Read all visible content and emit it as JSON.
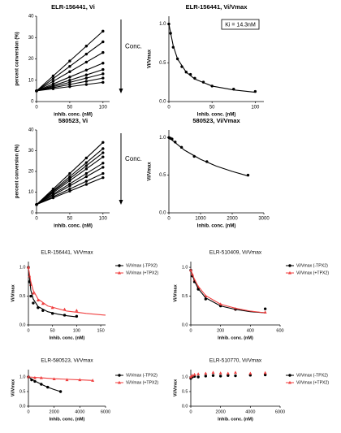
{
  "chart_data": [
    {
      "type": "line",
      "title": "ELR-156441, Vi",
      "xlabel": "inhib. conc. (nM)",
      "ylabel": "percent conversion (%)",
      "arrow_annotation": "Conc.",
      "x": [
        0,
        25,
        50,
        75,
        100
      ],
      "series": [
        {
          "color": "#000",
          "style": "both",
          "marker": "circle",
          "values": [
            5,
            12,
            19,
            26,
            33
          ]
        },
        {
          "color": "#000",
          "style": "both",
          "marker": "circle",
          "values": [
            5,
            10.75,
            16.5,
            22.25,
            28
          ]
        },
        {
          "color": "#000",
          "style": "both",
          "marker": "circle",
          "values": [
            5,
            9.5,
            14,
            18.5,
            23
          ]
        },
        {
          "color": "#000",
          "style": "both",
          "marker": "circle",
          "values": [
            5,
            8.25,
            11.5,
            14.75,
            18
          ]
        },
        {
          "color": "#000",
          "style": "both",
          "marker": "circle",
          "values": [
            5,
            7.5,
            10,
            12.5,
            15
          ]
        },
        {
          "color": "#000",
          "style": "both",
          "marker": "circle",
          "values": [
            5,
            7,
            9,
            11,
            13
          ]
        },
        {
          "color": "#000",
          "style": "both",
          "marker": "circle",
          "values": [
            5,
            6.5,
            8,
            9.5,
            11
          ]
        },
        {
          "color": "#000",
          "style": "both",
          "marker": "circle",
          "values": [
            5,
            6,
            7,
            8,
            9
          ]
        }
      ],
      "xlim": [
        0,
        110
      ],
      "xticks": [
        0,
        50,
        100
      ],
      "ylim": [
        0,
        40
      ],
      "yticks": [
        0,
        10,
        20,
        30,
        40
      ]
    },
    {
      "type": "scatter",
      "title": "ELR-156441, Vi/Vmax",
      "xlabel": "Inhib. conc. (nM)",
      "ylabel": "Vi/Vmax",
      "boxed_annotation": "Ki = 14.3nM",
      "series": [
        {
          "color": "#000",
          "style": "points",
          "marker": "circle",
          "x": [
            0,
            2,
            5,
            10,
            15,
            20,
            25,
            30,
            40,
            50,
            75,
            100
          ],
          "values": [
            1.0,
            0.88,
            0.7,
            0.55,
            0.45,
            0.38,
            0.35,
            0.3,
            0.25,
            0.2,
            0.16,
            0.13
          ]
        },
        {
          "color": "#000",
          "style": "line",
          "x": [
            0,
            5,
            10,
            20,
            30,
            50,
            75,
            100
          ],
          "values": [
            1.0,
            0.72,
            0.55,
            0.38,
            0.29,
            0.2,
            0.15,
            0.12
          ]
        }
      ],
      "xlim": [
        0,
        110
      ],
      "xticks": [
        0,
        50,
        100
      ],
      "ylim": [
        0,
        1.1
      ],
      "yticks": [
        {
          "value": 0,
          "label": "0.0"
        },
        0.5,
        {
          "value": 1,
          "label": "1.0"
        }
      ]
    },
    {
      "type": "line",
      "title": "580523, Vi",
      "xlabel": "inhib. conc. (nM)",
      "ylabel": "percent conversion (%)",
      "arrow_annotation": "Conc.",
      "x": [
        0,
        25,
        50,
        75,
        100
      ],
      "series": [
        {
          "color": "#000",
          "style": "both",
          "marker": "circle",
          "values": [
            4,
            11.5,
            19,
            26.5,
            34
          ]
        },
        {
          "color": "#000",
          "style": "both",
          "marker": "circle",
          "values": [
            4,
            10.75,
            17.5,
            24.25,
            31
          ]
        },
        {
          "color": "#000",
          "style": "both",
          "marker": "circle",
          "values": [
            4,
            10.25,
            16.5,
            22.75,
            29
          ]
        },
        {
          "color": "#000",
          "style": "both",
          "marker": "circle",
          "values": [
            4,
            9.75,
            15.5,
            21.25,
            27
          ]
        },
        {
          "color": "#000",
          "style": "both",
          "marker": "circle",
          "values": [
            4,
            9,
            14,
            19,
            24
          ]
        },
        {
          "color": "#000",
          "style": "both",
          "marker": "circle",
          "values": [
            4,
            8.5,
            13,
            17.5,
            22
          ]
        },
        {
          "color": "#000",
          "style": "both",
          "marker": "circle",
          "values": [
            4,
            7.75,
            11.5,
            15.25,
            19
          ]
        },
        {
          "color": "#000",
          "style": "both",
          "marker": "circle",
          "values": [
            4,
            7.25,
            10.5,
            13.75,
            17
          ]
        }
      ],
      "xlim": [
        0,
        110
      ],
      "xticks": [
        0,
        50,
        100
      ],
      "ylim": [
        0,
        40
      ],
      "yticks": [
        0,
        10,
        20,
        30,
        40
      ]
    },
    {
      "type": "scatter",
      "title": "580523, Vi/Vmax",
      "xlabel": "Inhib. conc. (nM)",
      "ylabel": "Vi/Vmax",
      "series": [
        {
          "color": "#000",
          "style": "points",
          "marker": "circle",
          "x": [
            0,
            50,
            100,
            200,
            400,
            800,
            1200,
            2500
          ],
          "values": [
            1.0,
            0.99,
            0.98,
            0.94,
            0.87,
            0.75,
            0.68,
            0.5
          ]
        },
        {
          "color": "#000",
          "style": "line",
          "x": [
            0,
            500,
            1000,
            1500,
            2000,
            2500
          ],
          "values": [
            1.0,
            0.83,
            0.71,
            0.62,
            0.55,
            0.49
          ]
        }
      ],
      "xlim": [
        0,
        3000
      ],
      "xticks": [
        0,
        1000,
        2000,
        3000
      ],
      "ylim": [
        0,
        1.1
      ],
      "yticks": [
        {
          "value": 0,
          "label": "0.0"
        },
        0.5,
        {
          "value": 1,
          "label": "1.0"
        }
      ]
    },
    {
      "type": "scatter",
      "title": "ELR-156441, Vi/Vmax",
      "xlabel": "Inhib. conc. (nM)",
      "ylabel": "Vi/Vmax",
      "series": [
        {
          "name": "Vi/Vmax (-TPX2)",
          "color": "#000",
          "style": "points",
          "marker": "circle",
          "x": [
            0,
            2,
            5,
            10,
            20,
            30,
            50,
            75,
            100
          ],
          "values": [
            1.0,
            0.75,
            0.5,
            0.38,
            0.3,
            0.25,
            0.2,
            0.17,
            0.15
          ]
        },
        {
          "name": "Vi/Vmax (+TPX2)",
          "color": "#f04040",
          "style": "points",
          "marker": "triangle",
          "x": [
            0,
            2,
            5,
            10,
            20,
            30,
            50,
            75,
            100
          ],
          "values": [
            1.0,
            0.85,
            0.7,
            0.55,
            0.43,
            0.37,
            0.3,
            0.27,
            0.25
          ]
        },
        {
          "color": "#000",
          "style": "line",
          "x": [
            0,
            5,
            10,
            20,
            40,
            60,
            80,
            100
          ],
          "values": [
            1.0,
            0.6,
            0.45,
            0.32,
            0.23,
            0.19,
            0.16,
            0.14
          ]
        },
        {
          "color": "#f04040",
          "style": "line",
          "x": [
            0,
            5,
            10,
            20,
            40,
            80,
            120,
            160
          ],
          "values": [
            1.0,
            0.75,
            0.6,
            0.45,
            0.33,
            0.24,
            0.2,
            0.17
          ]
        }
      ],
      "xlim": [
        0,
        160
      ],
      "xticks": [
        0,
        50,
        100,
        150
      ],
      "ylim": [
        0,
        1.1
      ],
      "yticks": [
        {
          "value": 0,
          "label": "0.0"
        },
        0.5,
        {
          "value": 1,
          "label": "1.0"
        }
      ]
    },
    {
      "type": "scatter",
      "title": "ELR-510409, Vi/Vmax",
      "xlabel": "Inhib. conc. (nM)",
      "ylabel": "Vi/Vmax",
      "series": [
        {
          "name": "Vi/Vmax (-TPX2)",
          "color": "#000",
          "style": "points",
          "marker": "circle",
          "x": [
            0,
            10,
            25,
            50,
            100,
            200,
            300,
            500
          ],
          "values": [
            0.95,
            0.85,
            0.75,
            0.62,
            0.45,
            0.33,
            0.27,
            0.28
          ]
        },
        {
          "name": "Vi/Vmax (+TPX2)",
          "color": "#f04040",
          "style": "points",
          "marker": "triangle",
          "x": [
            0,
            10,
            25,
            50,
            100,
            200,
            300,
            500
          ],
          "values": [
            0.95,
            0.88,
            0.78,
            0.66,
            0.5,
            0.36,
            0.28,
            0.22
          ]
        },
        {
          "color": "#000",
          "style": "line",
          "x": [
            0,
            25,
            50,
            100,
            200,
            300,
            400,
            500
          ],
          "values": [
            0.95,
            0.76,
            0.63,
            0.47,
            0.33,
            0.27,
            0.23,
            0.21
          ]
        },
        {
          "color": "#f04040",
          "style": "line",
          "x": [
            0,
            25,
            50,
            100,
            200,
            300,
            400,
            500
          ],
          "values": [
            0.95,
            0.79,
            0.67,
            0.51,
            0.36,
            0.29,
            0.24,
            0.21
          ]
        }
      ],
      "xlim": [
        0,
        600
      ],
      "xticks": [
        0,
        200,
        400,
        600
      ],
      "ylim": [
        0,
        1.1
      ],
      "yticks": [
        {
          "value": 0,
          "label": "0.0"
        },
        0.5,
        {
          "value": 1,
          "label": "1.0"
        }
      ]
    },
    {
      "type": "scatter",
      "title": "ELR-580523, Vi/Vmax",
      "xlabel": "Inhib. conc. (nM)",
      "ylabel": "Vi/Vmax",
      "series": [
        {
          "name": "Vi/Vmax (-TPX2)",
          "color": "#000",
          "style": "points",
          "marker": "circle",
          "x": [
            0,
            250,
            500,
            1000,
            1500,
            2500
          ],
          "values": [
            1.0,
            0.9,
            0.85,
            0.75,
            0.65,
            0.5
          ]
        },
        {
          "name": "Vi/Vmax (+TPX2)",
          "color": "#f04040",
          "style": "points",
          "marker": "triangle",
          "x": [
            0,
            500,
            1000,
            2000,
            3000,
            4000,
            5000
          ],
          "values": [
            1.0,
            0.97,
            0.97,
            0.93,
            0.9,
            0.9,
            0.88
          ]
        },
        {
          "color": "#000",
          "style": "line",
          "x": [
            0,
            500,
            1000,
            1500,
            2000,
            2500
          ],
          "values": [
            1.0,
            0.86,
            0.75,
            0.65,
            0.57,
            0.5
          ]
        },
        {
          "color": "#f04040",
          "style": "line",
          "x": [
            0,
            1000,
            2000,
            3000,
            4000,
            5000
          ],
          "values": [
            1.0,
            0.97,
            0.94,
            0.92,
            0.9,
            0.88
          ]
        }
      ],
      "xlim": [
        0,
        6000
      ],
      "xticks": [
        0,
        2000,
        4000,
        6000
      ],
      "ylim": [
        0,
        1.25
      ],
      "yticks": [
        {
          "value": 0,
          "label": "0.0"
        },
        0.5,
        {
          "value": 1,
          "label": "1.0"
        }
      ]
    },
    {
      "type": "scatter",
      "title": "ELR-510770, Vi/Vmax",
      "xlabel": "Inhib. conc. (nM)",
      "ylabel": "Vi/Vmax",
      "series": [
        {
          "name": "Vi/Vmax (-TPX2)",
          "color": "#000",
          "style": "points",
          "marker": "circle",
          "x": [
            0,
            100,
            250,
            500,
            1000,
            1500,
            2000,
            2500,
            3000,
            4000,
            5000
          ],
          "values": [
            0.95,
            1.0,
            1.02,
            1.0,
            1.03,
            1.05,
            1.03,
            1.05,
            1.04,
            1.06,
            1.07
          ]
        },
        {
          "name": "Vi/Vmax (+TPX2)",
          "color": "#f04040",
          "style": "points",
          "marker": "triangle",
          "x": [
            0,
            100,
            250,
            500,
            1000,
            1500,
            2000,
            2500,
            3000,
            4000,
            5000
          ],
          "values": [
            1.0,
            1.05,
            1.08,
            1.1,
            1.12,
            1.15,
            1.13,
            1.12,
            1.15,
            1.12,
            1.14
          ]
        }
      ],
      "xlim": [
        0,
        6000
      ],
      "xticks": [
        0,
        2000,
        4000,
        6000
      ],
      "ylim": [
        0,
        1.25
      ],
      "yticks": [
        {
          "value": 0,
          "label": "0.0"
        },
        0.5,
        {
          "value": 1,
          "label": "1.0"
        }
      ]
    }
  ]
}
